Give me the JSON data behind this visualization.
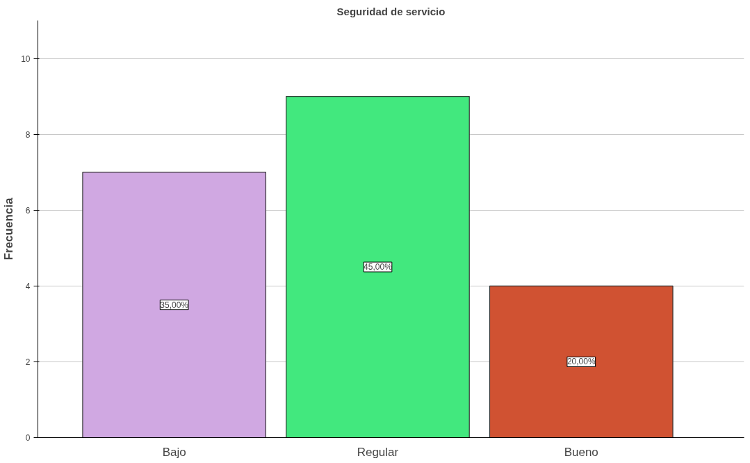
{
  "chart_data": {
    "type": "bar",
    "title": "Seguridad de servicio",
    "ylabel": "Frecuencia",
    "categories": [
      "Bajo",
      "Regular",
      "Bueno"
    ],
    "values": [
      7,
      9,
      4
    ],
    "colors": [
      "#d0a8e2",
      "#42e87e",
      "#d05232"
    ],
    "annotations": [
      {
        "text": "35,00%",
        "x": "Bajo",
        "y": 3.5
      },
      {
        "text": "45,00%",
        "x": "Regular",
        "y": 4.5
      },
      {
        "text": "20,00%",
        "x": "Bueno",
        "y": 2
      }
    ],
    "ylim": [
      0,
      11
    ],
    "yticks": [
      0,
      2,
      4,
      6,
      8,
      10
    ],
    "grid": "y"
  }
}
